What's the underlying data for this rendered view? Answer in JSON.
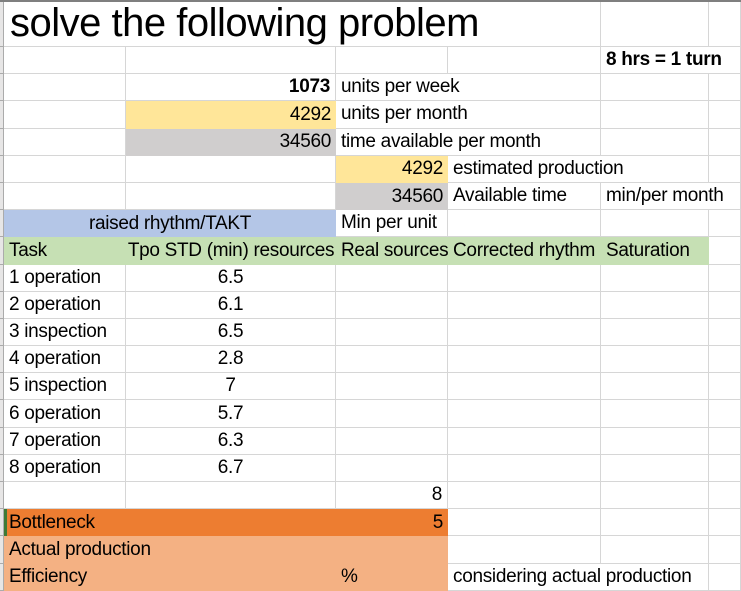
{
  "title": "solve the following problem",
  "turn_note": "8 hrs = 1 turn",
  "summary": {
    "units_per_week": {
      "value": "1073",
      "label": "units per week"
    },
    "units_per_month": {
      "value": "4292",
      "label": "units per month"
    },
    "time_available": {
      "value": "34560",
      "label": "time available per month"
    },
    "estimated_production": {
      "value": "4292",
      "label": "estimated production"
    },
    "available_time": {
      "value": "34560",
      "label": "Available time",
      "unit": "min/per month"
    }
  },
  "takt": {
    "label": "raised rhythm/TAKT",
    "unit": "Min per unit"
  },
  "table": {
    "headers": {
      "task": "Task",
      "tpo": "Tpo STD (min) resources",
      "real": "Real sources",
      "corrected": "Corrected rhythm",
      "saturation": "Saturation"
    },
    "rows": [
      {
        "task": "1 operation",
        "tpo": "6.5"
      },
      {
        "task": "2 operation",
        "tpo": "6.1"
      },
      {
        "task": "3 inspection",
        "tpo": "6.5"
      },
      {
        "task": "4 operation",
        "tpo": "2.8"
      },
      {
        "task": "5 inspection",
        "tpo": "7"
      },
      {
        "task": "6 operation",
        "tpo": "5.7"
      },
      {
        "task": "7 operation",
        "tpo": "6.3"
      },
      {
        "task": "8 operation",
        "tpo": "6.7"
      }
    ],
    "resources_total": "8"
  },
  "bottleneck": {
    "label": "Bottleneck",
    "value": "5"
  },
  "actual_production": {
    "label": "Actual production"
  },
  "efficiency": {
    "label": "Efficiency",
    "percent": "%",
    "note": "considering actual production"
  },
  "colors": {
    "yellow": "#FFE699",
    "gray": "#D0CECE",
    "blue": "#B4C6E7",
    "green": "#C6E0B4",
    "orange": "#ED7D31",
    "light_orange": "#F4B183",
    "marker_green": "#3E7A35"
  }
}
